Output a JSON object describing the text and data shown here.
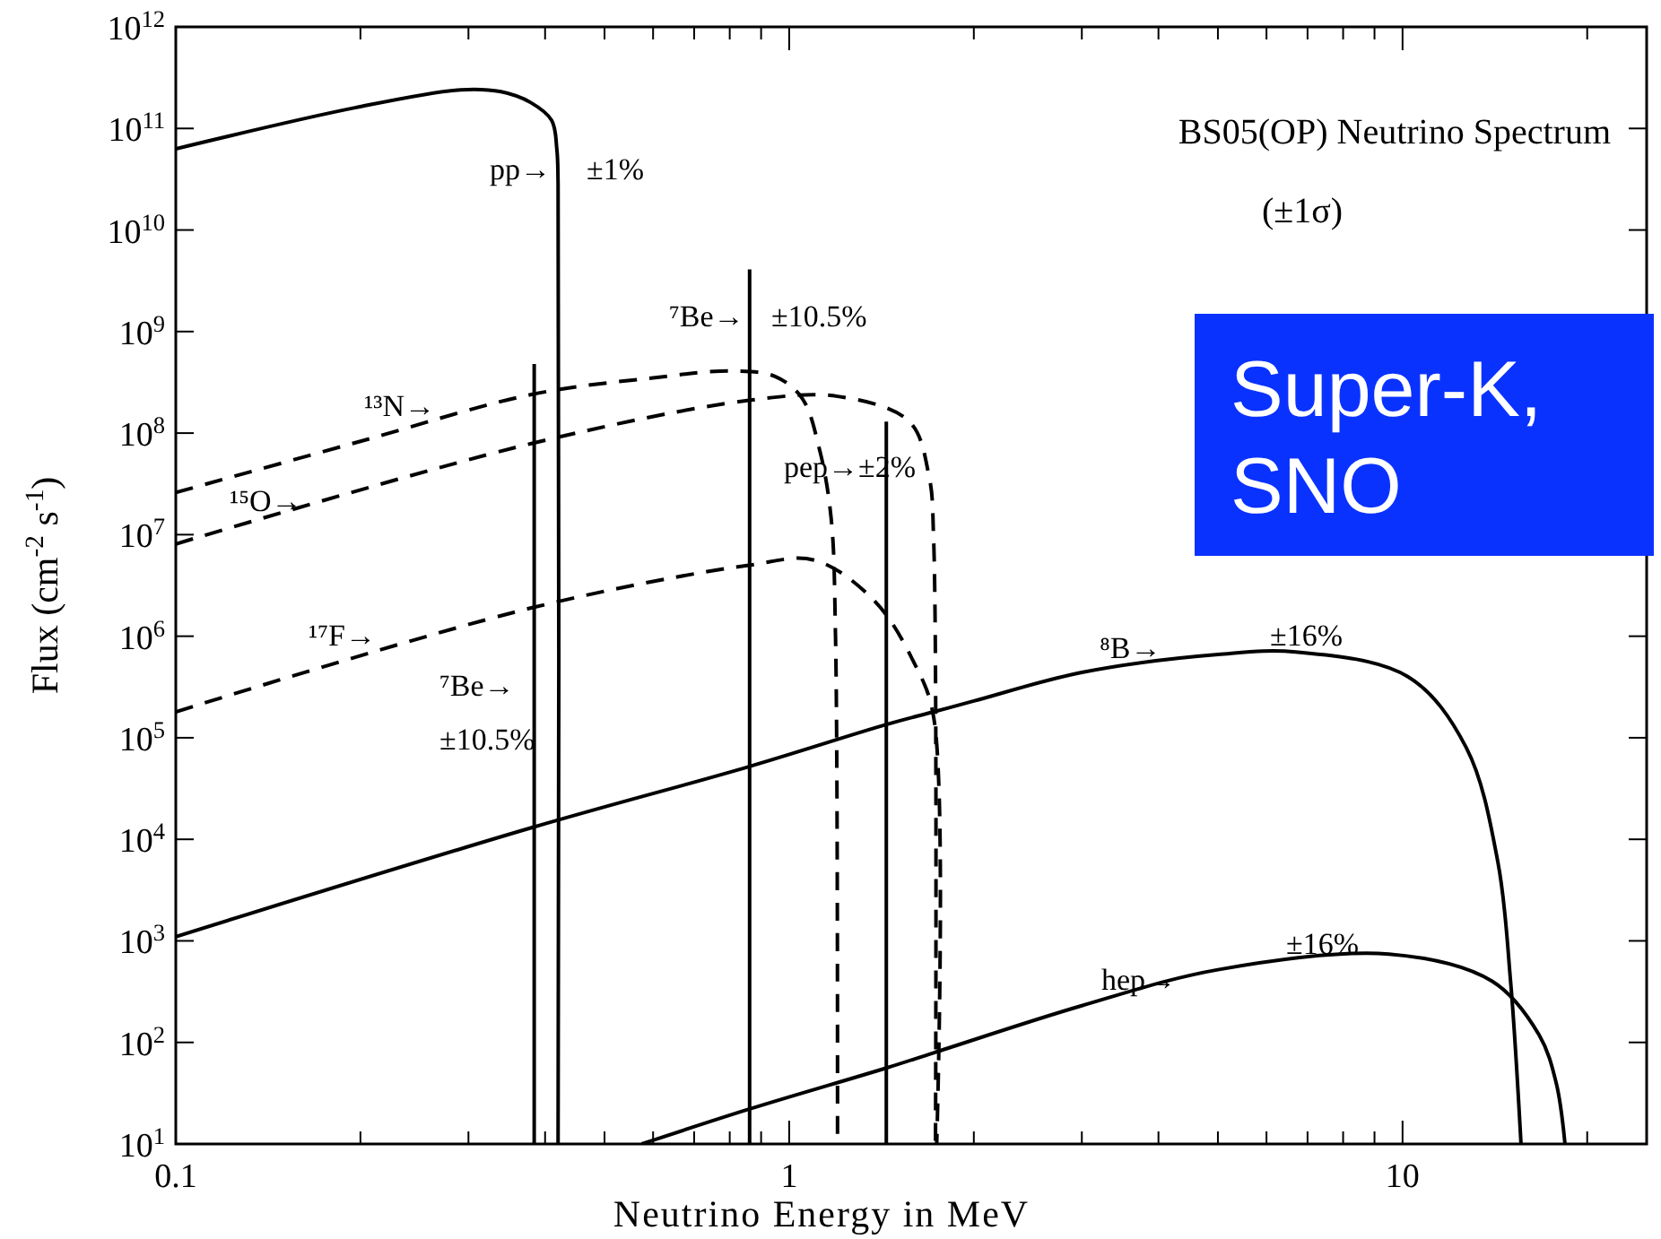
{
  "chart_data": {
    "type": "line",
    "title": "BS05(OP) Neutrino Spectrum",
    "subtitle": "(±1σ)",
    "xlabel": "Neutrino Energy in MeV",
    "ylabel": "Flux (cm$^{-2}$ s$^{-1}$)",
    "log": "xy",
    "xlim": [
      0.1,
      25
    ],
    "ylim": [
      10,
      1000000000000.0
    ],
    "xticks": [
      0.1,
      {
        "value": 0.2,
        "label": null
      },
      {
        "value": 0.3,
        "label": null
      },
      {
        "value": 0.4,
        "label": null
      },
      {
        "value": 0.5,
        "label": null
      },
      {
        "value": 0.6,
        "label": null
      },
      {
        "value": 0.7,
        "label": null
      },
      {
        "value": 0.8,
        "label": null
      },
      {
        "value": 0.9,
        "label": null
      },
      1,
      {
        "value": 2,
        "label": null
      },
      {
        "value": 3,
        "label": null
      },
      {
        "value": 4,
        "label": null
      },
      {
        "value": 5,
        "label": null
      },
      {
        "value": 6,
        "label": null
      },
      {
        "value": 7,
        "label": null
      },
      {
        "value": 8,
        "label": null
      },
      {
        "value": 9,
        "label": null
      },
      10,
      {
        "value": 20,
        "label": null
      }
    ],
    "yticks": [
      {
        "value": 10,
        "label": "10$^{1}$"
      },
      {
        "value": 100,
        "label": "10$^{2}$"
      },
      {
        "value": 1000,
        "label": "10$^{3}$"
      },
      {
        "value": 10000,
        "label": "10$^{4}$"
      },
      {
        "value": 100000,
        "label": "10$^{5}$"
      },
      {
        "value": 1000000,
        "label": "10$^{6}$"
      },
      {
        "value": 10000000,
        "label": "10$^{7}$"
      },
      {
        "value": 100000000,
        "label": "10$^{8}$"
      },
      {
        "value": 1000000000,
        "label": "10$^{9}$"
      },
      {
        "value": 10000000000,
        "label": "10$^{10}$"
      },
      {
        "value": 100000000000,
        "label": "10$^{11}$"
      },
      {
        "value": 1000000000000,
        "label": "10$^{12}$"
      }
    ],
    "grid": false,
    "series": [
      {
        "color": "#000000",
        "line_style": "solid",
        "x": [
          0.1,
          0.196,
          0.291,
          0.339,
          0.379,
          0.41,
          0.418,
          0.42,
          0.42
        ],
        "values": [
          63000000000.0,
          160000000000.0,
          240000000000.0,
          230000000000.0,
          180000000000.0,
          120000000000.0,
          63000000000.0,
          28000000000.0,
          10
        ]
      },
      {
        "color": "#000000",
        "line_style": "solid",
        "x": [
          0.384,
          0.384
        ],
        "values": [
          10,
          480000000.0
        ]
      },
      {
        "color": "#000000",
        "line_style": "solid",
        "x": [
          0.862,
          0.862
        ],
        "values": [
          10,
          4100000000.0
        ]
      },
      {
        "color": "#000000",
        "line_style": "solid",
        "x": [
          1.44,
          1.44
        ],
        "values": [
          10,
          130000000.0
        ]
      },
      {
        "color": "#000000",
        "line_style": "dashed",
        "x": [
          0.1,
          0.2,
          0.38,
          0.6,
          0.81,
          0.95,
          1.05,
          1.12,
          1.17,
          1.19,
          1.199
        ],
        "values": [
          26000000.0,
          83000000.0,
          240000000.0,
          350000000.0,
          410000000.0,
          360000000.0,
          220000000.0,
          70000000.0,
          15000000.0,
          1000000.0,
          10
        ]
      },
      {
        "color": "#000000",
        "line_style": "dashed",
        "x": [
          0.1,
          0.38,
          0.86,
          1.2,
          1.57,
          1.69,
          1.72,
          1.732
        ],
        "values": [
          8100000.0,
          79000000.0,
          210000000.0,
          230000000.0,
          130000000.0,
          38000000.0,
          9000000.0,
          10
        ]
      },
      {
        "color": "#000000",
        "line_style": "dashed",
        "x": [
          0.1,
          0.38,
          0.86,
          1.1,
          1.38,
          1.6,
          1.72,
          1.74
        ],
        "values": [
          180000.0,
          1900000.0,
          5000000.0,
          5600000.0,
          2200000.0,
          540000.0,
          160000.0,
          10
        ]
      },
      {
        "color": "#000000",
        "line_style": "solid",
        "x": [
          0.1,
          0.38,
          0.86,
          1.44,
          1.72,
          2,
          3,
          5,
          6.7,
          10.2,
          12.7,
          14.3,
          15,
          15.6
        ],
        "values": [
          1100,
          13000,
          52000,
          135000,
          180000,
          230000,
          440000,
          660000,
          700000,
          400000,
          80000,
          6000,
          400,
          10
        ]
      },
      {
        "color": "#000000",
        "line_style": "solid",
        "x": [
          0.575,
          0.86,
          1.44,
          1.72,
          3,
          5,
          9.5,
          14,
          16.7,
          17.8,
          18.4
        ],
        "values": [
          10,
          22,
          56,
          79,
          230,
          520,
          740,
          400,
          118,
          40,
          10
        ]
      }
    ],
    "annotations": [
      "pp→",
      "±1%",
      "⁷Be→",
      "±10.5%",
      "¹³N→",
      "¹⁵O→",
      "pep→±2%",
      "¹⁷F→",
      "⁷Be→",
      "±10.5%",
      "⁸B→",
      "±16%",
      "hep→",
      "±16%",
      "Super-K, SNO"
    ]
  }
}
